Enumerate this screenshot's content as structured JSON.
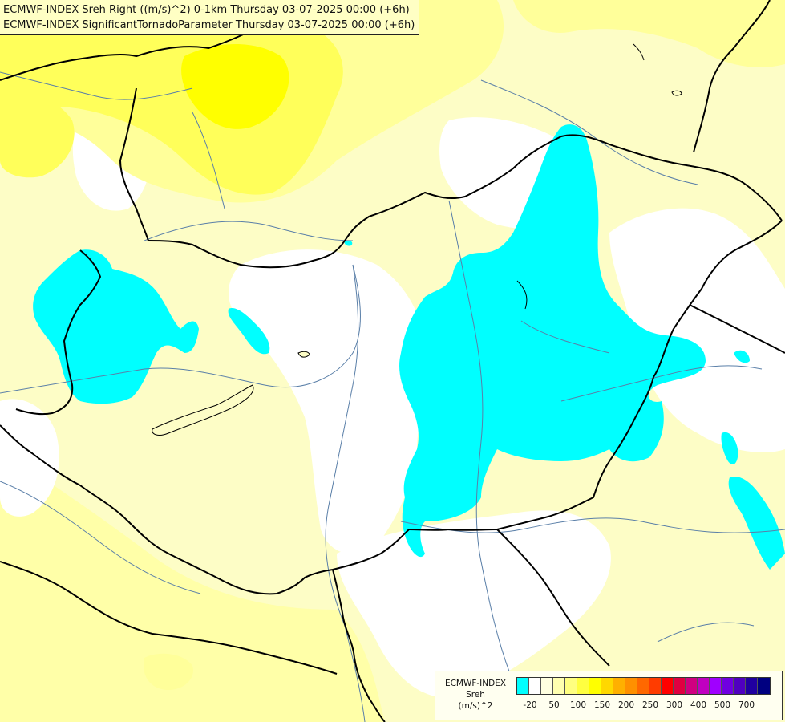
{
  "header": {
    "title_line_1": "ECMWF-INDEX Sreh Right ((m/s)^2) 0-1km Thursday 03-07-2025 00:00 (+6h)",
    "title_line_2": "ECMWF-INDEX SignificantTornadoParameter Thursday 03-07-2025 00:00 (+6h)"
  },
  "legend": {
    "label_line_1": "ECMWF-INDEX",
    "label_line_2": "Sreh",
    "label_line_3": "(m/s)^2",
    "colors": [
      "#00ffff",
      "#ffffff",
      "#ffffe0",
      "#ffffb0",
      "#ffff80",
      "#ffff40",
      "#ffff00",
      "#ffd800",
      "#ffb000",
      "#ff9000",
      "#ff6800",
      "#ff3c00",
      "#ff0000",
      "#e00040",
      "#d00080",
      "#c000c0",
      "#a000ff",
      "#7000e0",
      "#5000c0",
      "#2000a0",
      "#000080"
    ],
    "ticks": [
      "-20",
      "50",
      "100",
      "150",
      "200",
      "250",
      "300",
      "400",
      "500",
      "700"
    ]
  },
  "palette": {
    "cyan": "#00ffff",
    "white": "#ffffff",
    "pale_yellow": "#fdfdc6",
    "light_yellow": "#ffff9a",
    "yellow": "#ffff5a",
    "bright_yellow": "#ffff00",
    "border_color": "#000000",
    "river_color": "#5a7fa8"
  }
}
